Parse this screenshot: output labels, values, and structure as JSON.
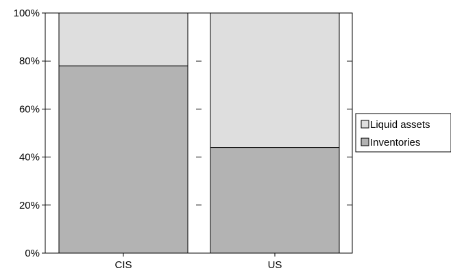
{
  "chart_data": {
    "type": "bar",
    "stacked": true,
    "percent": true,
    "categories": [
      "CIS",
      "US"
    ],
    "series": [
      {
        "name": "Inventories",
        "values": [
          78,
          44
        ],
        "color": "#b3b3b3"
      },
      {
        "name": "Liquid assets",
        "values": [
          22,
          56
        ],
        "color": "#dedede"
      }
    ],
    "ylim": [
      0,
      100
    ],
    "yticks": [
      "0%",
      "20%",
      "40%",
      "60%",
      "80%",
      "100%"
    ],
    "grid": "dashed-horizontal",
    "legend_position": "right",
    "legend_order": [
      "Liquid assets",
      "Inventories"
    ]
  }
}
